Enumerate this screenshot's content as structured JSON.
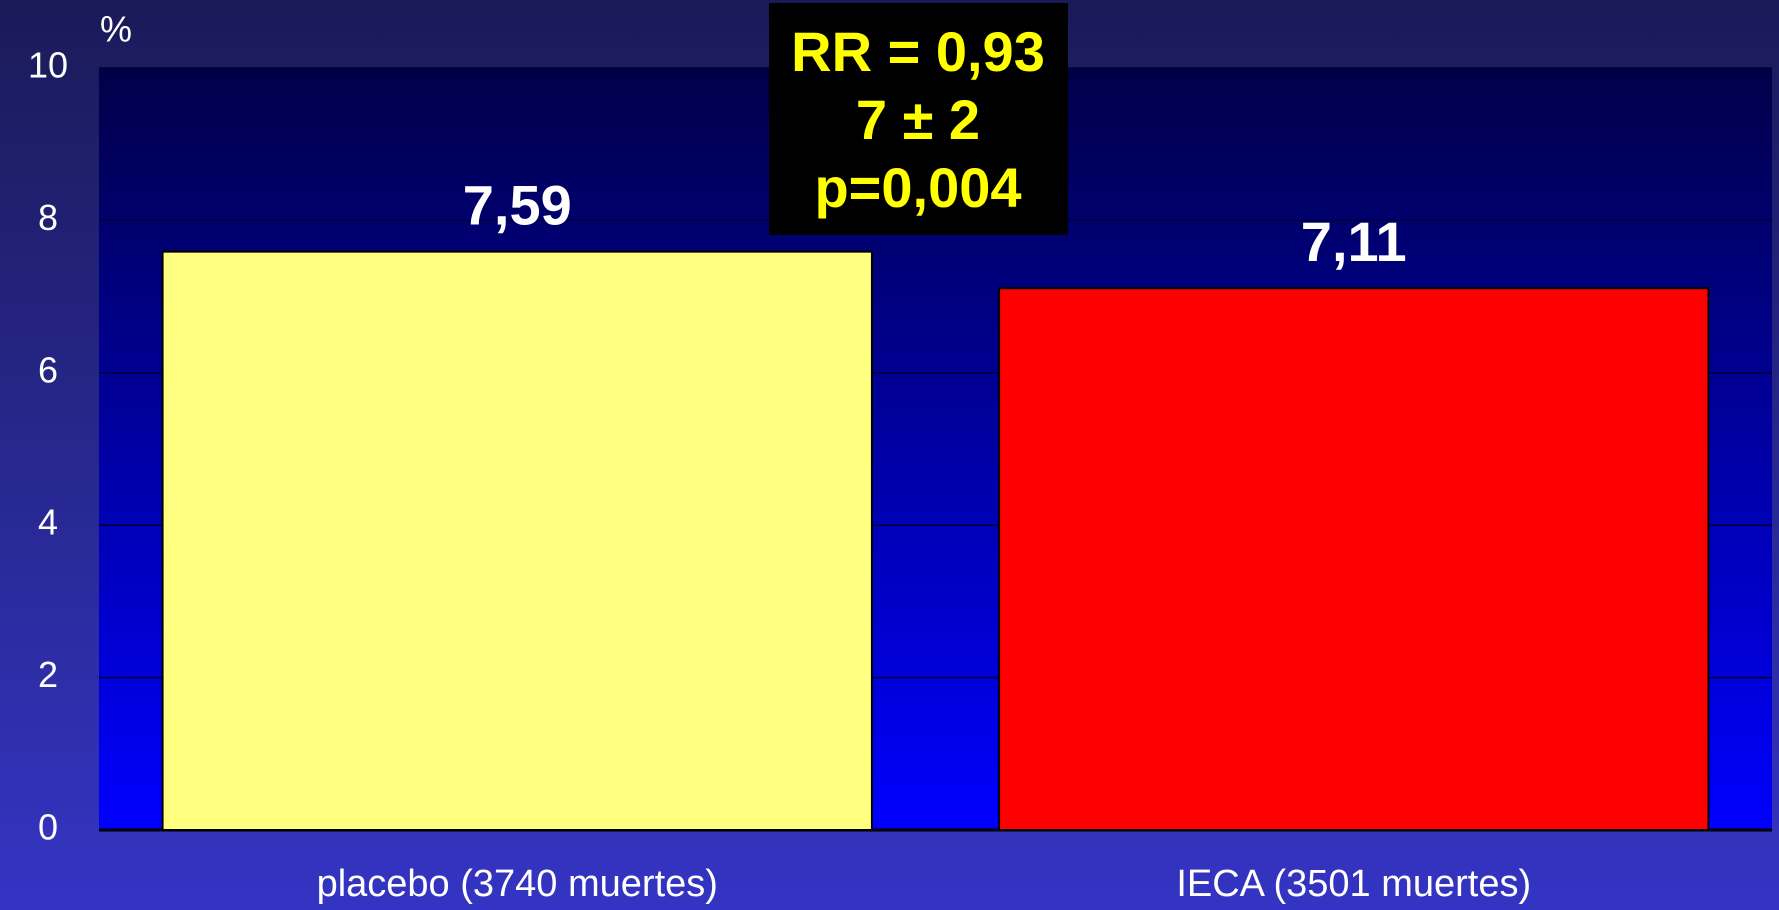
{
  "chart_data": {
    "type": "bar",
    "y_axis_label": "%",
    "categories": [
      "placebo (3740 muertes)",
      "IECA (3501 muertes)"
    ],
    "values": [
      7.59,
      7.11
    ],
    "value_labels": [
      "7,59",
      "7,11"
    ],
    "colors": [
      "#ffff80",
      "#ff0000"
    ],
    "ylim": [
      0,
      10
    ],
    "yticks": [
      0,
      2,
      4,
      6,
      8,
      10
    ],
    "grid": true,
    "annotation": [
      "RR = 0,93",
      "7 ± 2",
      "p=0,004"
    ]
  }
}
